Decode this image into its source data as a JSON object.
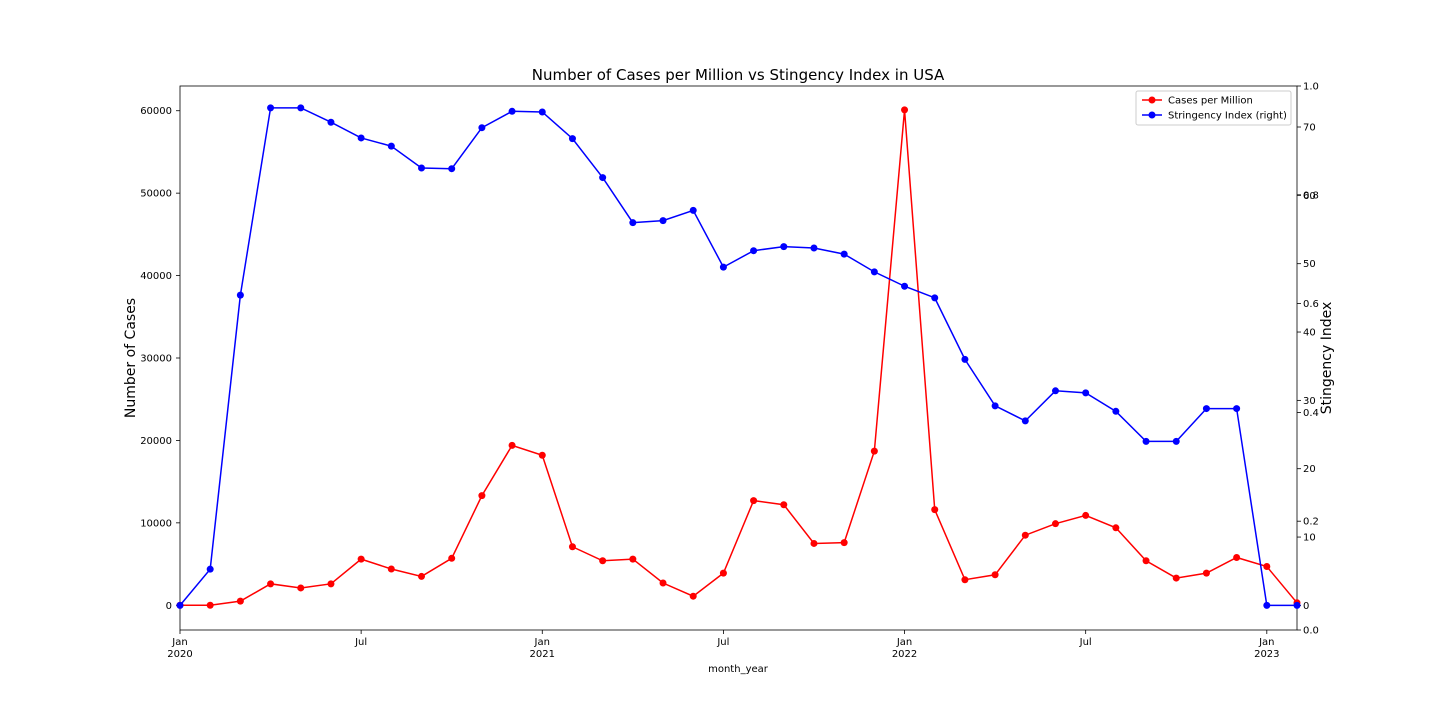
{
  "chart_data": {
    "type": "line",
    "title": "Number of Cases per Million vs Stingency Index in USA",
    "xlabel": "month_year",
    "ylabel": "Number of Cases",
    "y2label": "Stingency Index",
    "x": [
      "2020-01",
      "2020-02",
      "2020-03",
      "2020-04",
      "2020-05",
      "2020-06",
      "2020-07",
      "2020-08",
      "2020-09",
      "2020-10",
      "2020-11",
      "2020-12",
      "2021-01",
      "2021-02",
      "2021-03",
      "2021-04",
      "2021-05",
      "2021-06",
      "2021-07",
      "2021-08",
      "2021-09",
      "2021-10",
      "2021-11",
      "2021-12",
      "2022-01",
      "2022-02",
      "2022-03",
      "2022-04",
      "2022-05",
      "2022-06",
      "2022-07",
      "2022-08",
      "2022-09",
      "2022-10",
      "2022-11",
      "2022-12",
      "2023-01",
      "2023-02"
    ],
    "xlim": [
      "2020-01",
      "2023-02"
    ],
    "x_ticks": [
      {
        "x": "2020-01",
        "label": "Jan",
        "label2": "2020"
      },
      {
        "x": "2020-07",
        "label": "Jul",
        "label2": ""
      },
      {
        "x": "2021-01",
        "label": "Jan",
        "label2": "2021"
      },
      {
        "x": "2021-07",
        "label": "Jul",
        "label2": ""
      },
      {
        "x": "2022-01",
        "label": "Jan",
        "label2": "2022"
      },
      {
        "x": "2022-07",
        "label": "Jul",
        "label2": ""
      },
      {
        "x": "2023-01",
        "label": "Jan",
        "label2": "2023"
      }
    ],
    "ylim": [
      -3000,
      63000
    ],
    "y_ticks": [
      "0",
      "10000",
      "20000",
      "30000",
      "40000",
      "50000",
      "60000"
    ],
    "y2lim": [
      -3.6,
      76
    ],
    "y2_ticks": [
      "0",
      "10",
      "20",
      "30",
      "40",
      "50",
      "60",
      "70"
    ],
    "y3lim": [
      0.0,
      1.0
    ],
    "y3_ticks": [
      "0.0",
      "0.2",
      "0.4",
      "0.6",
      "0.8",
      "1.0"
    ],
    "series": [
      {
        "name": "Cases per Million",
        "color": "#ff0000",
        "axis": "left",
        "values": [
          0,
          0,
          500,
          2600,
          2100,
          2600,
          5600,
          4400,
          3500,
          5700,
          13300,
          19400,
          18200,
          7100,
          5400,
          5600,
          2700,
          1100,
          3900,
          12700,
          12200,
          7500,
          7600,
          18700,
          60100,
          11600,
          3100,
          3700,
          8500,
          9900,
          10900,
          9400,
          5400,
          3300,
          3900,
          5800,
          4700,
          300
        ]
      },
      {
        "name": "Stringency Index (right)",
        "color": "#0000ff",
        "axis": "right",
        "values": [
          0,
          5.3,
          45.4,
          72.8,
          72.8,
          70.7,
          68.4,
          67.2,
          64.0,
          63.9,
          69.9,
          72.3,
          72.2,
          68.3,
          62.6,
          56.0,
          56.3,
          57.8,
          49.5,
          51.9,
          52.5,
          52.3,
          51.4,
          48.8,
          46.7,
          45.0,
          36.0,
          29.2,
          27.0,
          31.4,
          31.1,
          28.4,
          24.0,
          24.0,
          28.8,
          28.8,
          0,
          0
        ]
      }
    ],
    "legend_position": "top-right",
    "grid": false
  }
}
